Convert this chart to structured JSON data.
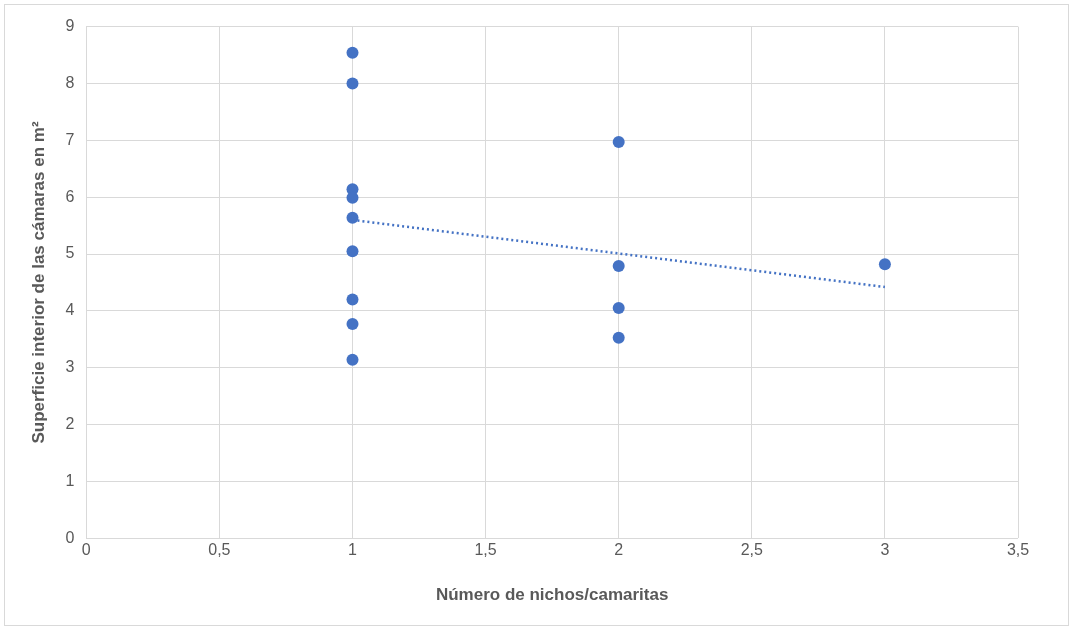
{
  "chart_data": {
    "type": "scatter",
    "xlabel": "Número de nichos/camaritas",
    "ylabel": "Superficie interior de las cámaras en m²",
    "series": [
      {
        "color": "#4472c4",
        "x": [
          1,
          1,
          1,
          1,
          1,
          1,
          1,
          1,
          1,
          2,
          2,
          2,
          2,
          3
        ],
        "values": [
          8.54,
          8.0,
          6.14,
          5.99,
          5.64,
          5.05,
          4.2,
          3.77,
          3.14,
          6.97,
          4.79,
          4.05,
          3.53,
          4.82
        ],
        "marker": "circle"
      },
      {
        "type": "line",
        "color": "#4472c4",
        "x": [
          1,
          3
        ],
        "values": [
          5.6,
          4.42
        ],
        "line_style": "dotted",
        "marker": "none"
      }
    ],
    "xlim": [
      0,
      3.5
    ],
    "xticks": [
      0,
      {
        "value": 0.5,
        "label": "0,5"
      },
      1,
      {
        "value": 1.5,
        "label": "1,5"
      },
      2,
      {
        "value": 2.5,
        "label": "2,5"
      },
      3,
      {
        "value": 3.5,
        "label": "3,5"
      }
    ],
    "ylim": [
      0,
      9
    ],
    "yticks": [
      0,
      1,
      2,
      3,
      4,
      5,
      6,
      7,
      8,
      9
    ],
    "grid": true,
    "legend": false
  }
}
